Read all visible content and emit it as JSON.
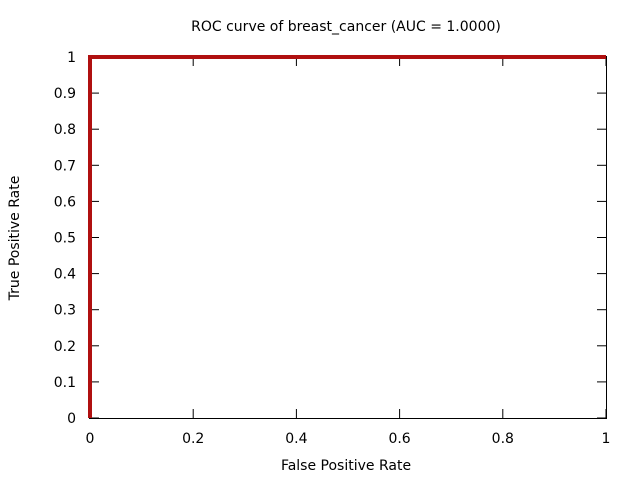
{
  "chart_data": {
    "type": "line",
    "title": "ROC curve of breast_cancer (AUC = 1.0000)",
    "xlabel": "False Positive Rate",
    "ylabel": "True Positive Rate",
    "xlim": [
      0,
      1
    ],
    "ylim": [
      0,
      1
    ],
    "x_ticks": [
      "0",
      "0.2",
      "0.4",
      "0.6",
      "0.8",
      "1"
    ],
    "y_ticks": [
      "0",
      "0.1",
      "0.2",
      "0.3",
      "0.4",
      "0.5",
      "0.6",
      "0.7",
      "0.8",
      "0.9",
      "1"
    ],
    "grid": false,
    "series": [
      {
        "color": "#b01010",
        "x": [
          0,
          0,
          1
        ],
        "y": [
          0,
          1,
          1
        ]
      }
    ]
  }
}
